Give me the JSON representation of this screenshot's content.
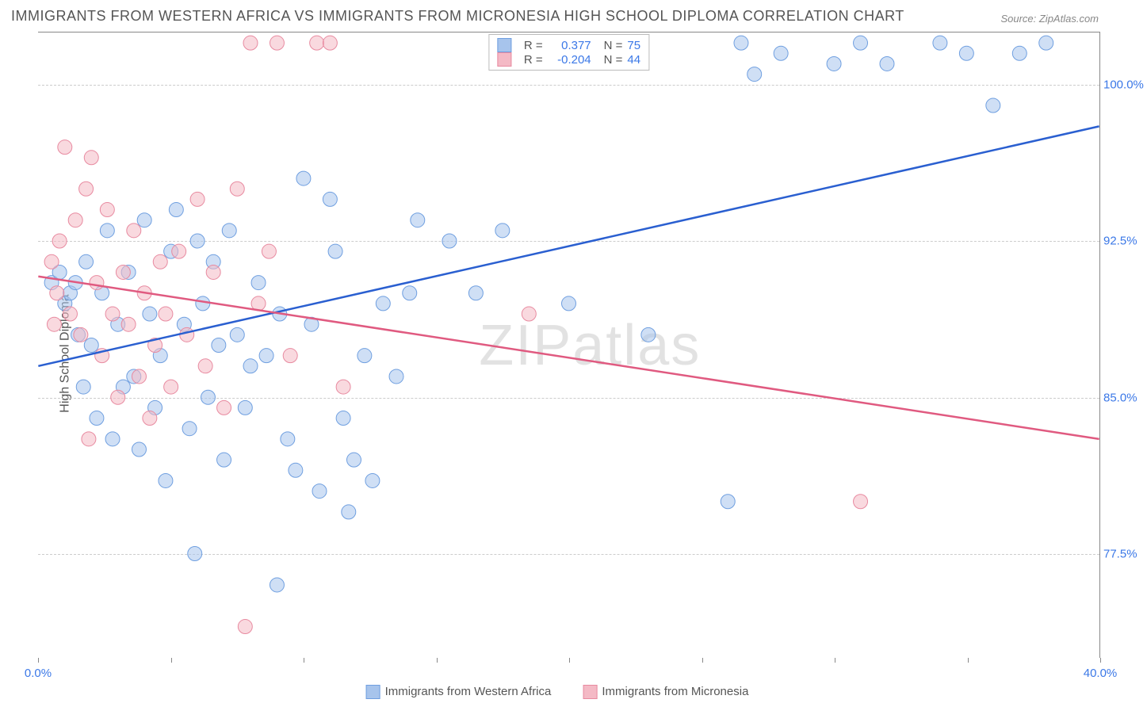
{
  "title": "IMMIGRANTS FROM WESTERN AFRICA VS IMMIGRANTS FROM MICRONESIA HIGH SCHOOL DIPLOMA CORRELATION CHART",
  "source": "Source: ZipAtlas.com",
  "ylabel": "High School Diploma",
  "watermark_prefix": "ZIP",
  "watermark_suffix": "atlas",
  "chart": {
    "type": "scatter-with-regression",
    "background_color": "#ffffff",
    "grid_color": "#cccccc",
    "border_color": "#888888",
    "axis_label_color": "#555555",
    "tick_label_color": "#3b78e7",
    "title_fontsize": 18,
    "label_fontsize": 16,
    "tick_fontsize": 15,
    "xlim": [
      0,
      40
    ],
    "ylim": [
      72.5,
      102.5
    ],
    "yticks": [
      77.5,
      85.0,
      92.5,
      100.0
    ],
    "ytick_labels": [
      "77.5%",
      "85.0%",
      "92.5%",
      "100.0%"
    ],
    "xtick_positions": [
      0,
      5,
      10,
      15,
      20,
      25,
      30,
      35,
      40
    ],
    "xtick_labels_shown": {
      "0": "0.0%",
      "40": "40.0%"
    },
    "marker_radius": 9,
    "marker_opacity": 0.55,
    "line_width": 2.5,
    "series": [
      {
        "name": "Immigrants from Western Africa",
        "color_fill": "#a7c4ec",
        "color_stroke": "#6f9fe0",
        "line_color": "#2a5fd0",
        "r": "0.377",
        "n": "75",
        "regression": {
          "x1": 0,
          "y1": 86.5,
          "x2": 40,
          "y2": 98.0
        },
        "points": [
          [
            0.5,
            90.5
          ],
          [
            0.8,
            91.0
          ],
          [
            1.0,
            89.5
          ],
          [
            1.2,
            90.0
          ],
          [
            1.4,
            90.5
          ],
          [
            1.5,
            88.0
          ],
          [
            1.7,
            85.5
          ],
          [
            1.8,
            91.5
          ],
          [
            2.0,
            87.5
          ],
          [
            2.2,
            84.0
          ],
          [
            2.4,
            90.0
          ],
          [
            2.6,
            93.0
          ],
          [
            2.8,
            83.0
          ],
          [
            3.0,
            88.5
          ],
          [
            3.2,
            85.5
          ],
          [
            3.4,
            91.0
          ],
          [
            3.6,
            86.0
          ],
          [
            3.8,
            82.5
          ],
          [
            4.0,
            93.5
          ],
          [
            4.2,
            89.0
          ],
          [
            4.4,
            84.5
          ],
          [
            4.6,
            87.0
          ],
          [
            4.8,
            81.0
          ],
          [
            5.0,
            92.0
          ],
          [
            5.2,
            94.0
          ],
          [
            5.5,
            88.5
          ],
          [
            5.7,
            83.5
          ],
          [
            5.9,
            77.5
          ],
          [
            6.0,
            92.5
          ],
          [
            6.2,
            89.5
          ],
          [
            6.4,
            85.0
          ],
          [
            6.6,
            91.5
          ],
          [
            6.8,
            87.5
          ],
          [
            7.0,
            82.0
          ],
          [
            7.2,
            93.0
          ],
          [
            7.5,
            88.0
          ],
          [
            7.8,
            84.5
          ],
          [
            8.0,
            86.5
          ],
          [
            8.3,
            90.5
          ],
          [
            8.6,
            87.0
          ],
          [
            9.0,
            76.0
          ],
          [
            9.1,
            89.0
          ],
          [
            9.4,
            83.0
          ],
          [
            9.7,
            81.5
          ],
          [
            10.0,
            95.5
          ],
          [
            10.3,
            88.5
          ],
          [
            10.6,
            80.5
          ],
          [
            11.0,
            94.5
          ],
          [
            11.2,
            92.0
          ],
          [
            11.5,
            84.0
          ],
          [
            11.7,
            79.5
          ],
          [
            11.9,
            82.0
          ],
          [
            12.3,
            87.0
          ],
          [
            12.6,
            81.0
          ],
          [
            13.0,
            89.5
          ],
          [
            13.5,
            86.0
          ],
          [
            14.0,
            90.0
          ],
          [
            14.3,
            93.5
          ],
          [
            15.5,
            92.5
          ],
          [
            16.5,
            90.0
          ],
          [
            17.5,
            93.0
          ],
          [
            20.0,
            89.5
          ],
          [
            23.0,
            88.0
          ],
          [
            26.0,
            80.0
          ],
          [
            26.5,
            102.0
          ],
          [
            27.0,
            100.5
          ],
          [
            28.0,
            101.5
          ],
          [
            30.0,
            101.0
          ],
          [
            31.0,
            102.0
          ],
          [
            32.0,
            101.0
          ],
          [
            34.0,
            102.0
          ],
          [
            35.0,
            101.5
          ],
          [
            36.0,
            99.0
          ],
          [
            37.0,
            101.5
          ],
          [
            38.0,
            102.0
          ]
        ]
      },
      {
        "name": "Immigrants from Micronesia",
        "color_fill": "#f4b9c5",
        "color_stroke": "#e88aa0",
        "line_color": "#e05a80",
        "r": "-0.204",
        "n": "44",
        "regression": {
          "x1": 0,
          "y1": 90.8,
          "x2": 40,
          "y2": 83.0
        },
        "points": [
          [
            0.5,
            91.5
          ],
          [
            0.7,
            90.0
          ],
          [
            0.8,
            92.5
          ],
          [
            1.0,
            97.0
          ],
          [
            1.2,
            89.0
          ],
          [
            1.4,
            93.5
          ],
          [
            1.6,
            88.0
          ],
          [
            1.8,
            95.0
          ],
          [
            1.9,
            83.0
          ],
          [
            2.0,
            96.5
          ],
          [
            2.2,
            90.5
          ],
          [
            2.4,
            87.0
          ],
          [
            2.6,
            94.0
          ],
          [
            2.8,
            89.0
          ],
          [
            3.0,
            85.0
          ],
          [
            3.2,
            91.0
          ],
          [
            3.4,
            88.5
          ],
          [
            3.6,
            93.0
          ],
          [
            3.8,
            86.0
          ],
          [
            4.0,
            90.0
          ],
          [
            4.2,
            84.0
          ],
          [
            4.4,
            87.5
          ],
          [
            4.6,
            91.5
          ],
          [
            4.8,
            89.0
          ],
          [
            5.0,
            85.5
          ],
          [
            5.3,
            92.0
          ],
          [
            5.6,
            88.0
          ],
          [
            6.0,
            94.5
          ],
          [
            6.3,
            86.5
          ],
          [
            6.6,
            91.0
          ],
          [
            7.0,
            84.5
          ],
          [
            7.5,
            95.0
          ],
          [
            7.8,
            74.0
          ],
          [
            8.0,
            102.0
          ],
          [
            8.3,
            89.5
          ],
          [
            8.7,
            92.0
          ],
          [
            9.0,
            102.0
          ],
          [
            9.5,
            87.0
          ],
          [
            10.5,
            102.0
          ],
          [
            11.0,
            102.0
          ],
          [
            11.5,
            85.5
          ],
          [
            18.5,
            89.0
          ],
          [
            31.0,
            80.0
          ],
          [
            0.6,
            88.5
          ]
        ]
      }
    ]
  },
  "bottom_legend": [
    {
      "label": "Immigrants from Western Africa",
      "fill": "#a7c4ec",
      "stroke": "#6f9fe0"
    },
    {
      "label": "Immigrants from Micronesia",
      "fill": "#f4b9c5",
      "stroke": "#e88aa0"
    }
  ]
}
